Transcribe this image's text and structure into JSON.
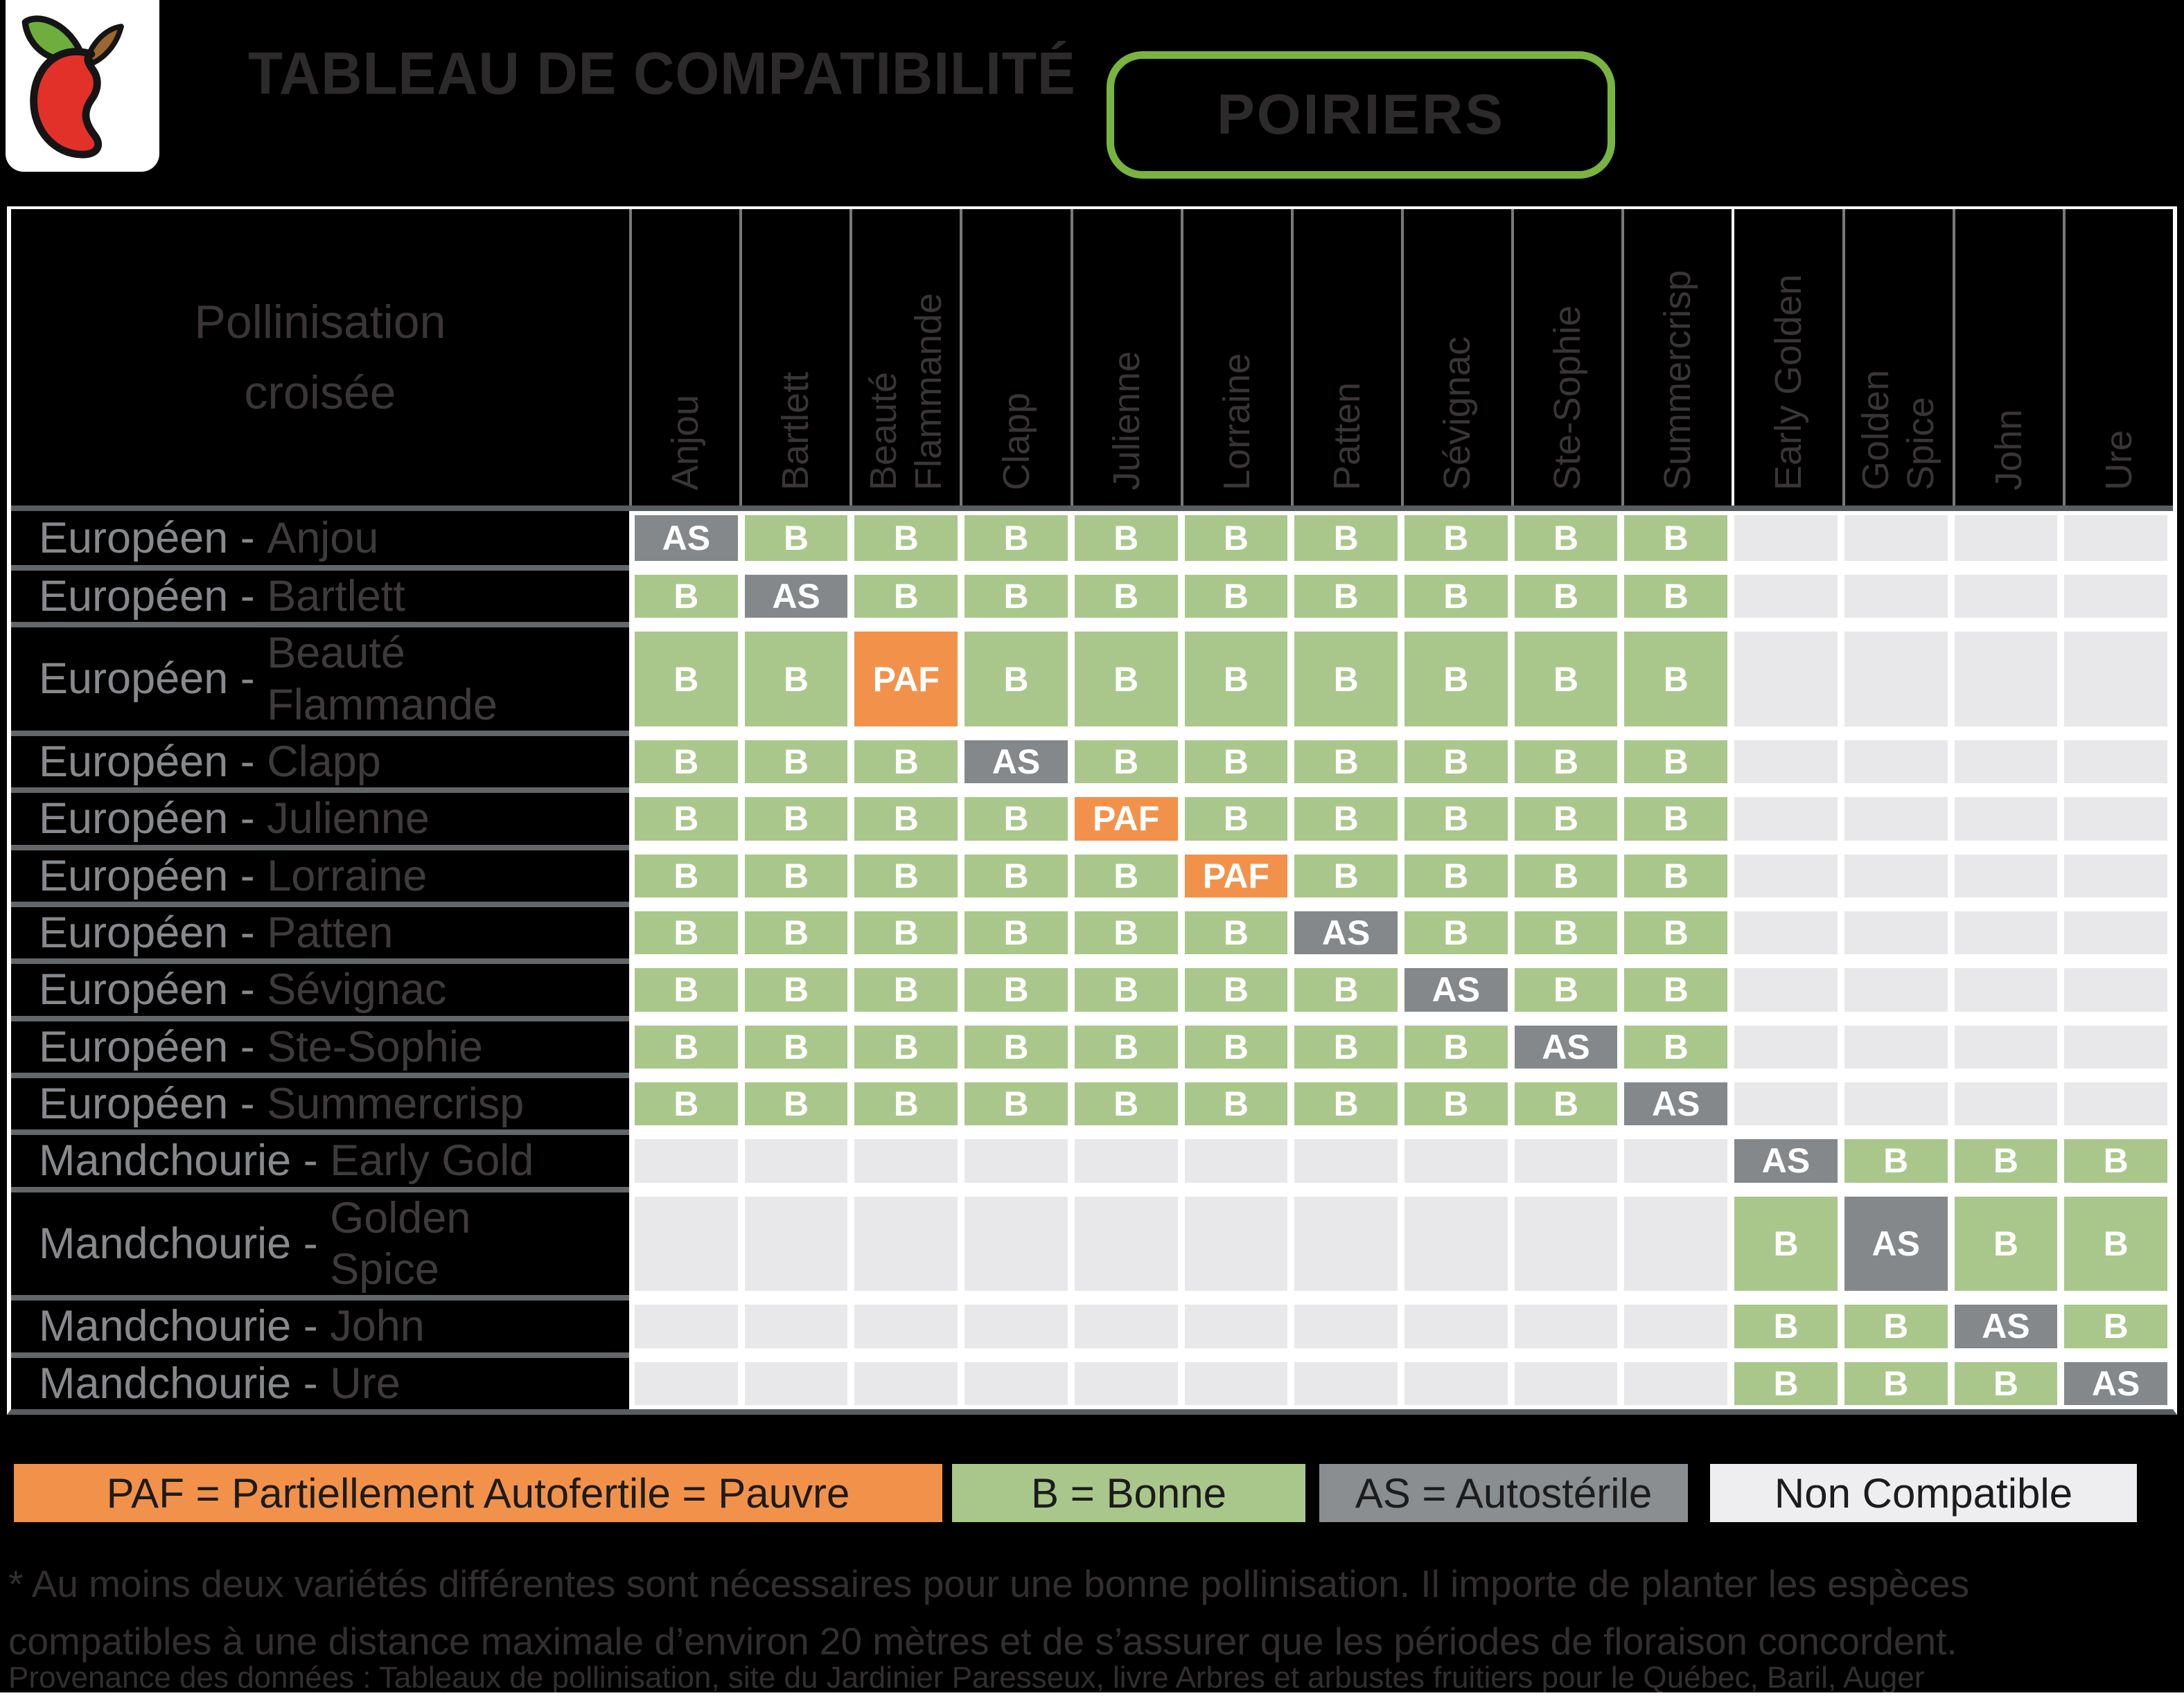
{
  "header": {
    "title": "TABLEAU DE COMPATIBILITÉ",
    "badge": "POIRIERS",
    "badge_border_color": "#79b440"
  },
  "table": {
    "corner": "Pollinisation\ncroisée",
    "columns": [
      "Anjou",
      "Bartlett",
      "Beauté\nFlammande",
      "Clapp",
      "Julienne",
      "Lorraine",
      "Patten",
      "Sévignac",
      "Ste-Sophie",
      "Summercrisp",
      "Early Golden",
      "Golden\nSpice",
      "John",
      "Ure"
    ],
    "rows": [
      {
        "species": "Européen",
        "variety": "Anjou",
        "cells": [
          "AS",
          "B",
          "B",
          "B",
          "B",
          "B",
          "B",
          "B",
          "B",
          "B",
          "",
          "",
          "",
          ""
        ]
      },
      {
        "species": "Européen",
        "variety": "Bartlett",
        "cells": [
          "B",
          "AS",
          "B",
          "B",
          "B",
          "B",
          "B",
          "B",
          "B",
          "B",
          "",
          "",
          "",
          ""
        ]
      },
      {
        "species": "Européen",
        "variety": "Beauté\nFlammande",
        "cells": [
          "B",
          "B",
          "PAF",
          "B",
          "B",
          "B",
          "B",
          "B",
          "B",
          "B",
          "",
          "",
          "",
          ""
        ]
      },
      {
        "species": "Européen",
        "variety": "Clapp",
        "cells": [
          "B",
          "B",
          "B",
          "AS",
          "B",
          "B",
          "B",
          "B",
          "B",
          "B",
          "",
          "",
          "",
          ""
        ]
      },
      {
        "species": "Européen",
        "variety": "Julienne",
        "cells": [
          "B",
          "B",
          "B",
          "B",
          "PAF",
          "B",
          "B",
          "B",
          "B",
          "B",
          "",
          "",
          "",
          ""
        ]
      },
      {
        "species": "Européen",
        "variety": "Lorraine",
        "cells": [
          "B",
          "B",
          "B",
          "B",
          "B",
          "PAF",
          "B",
          "B",
          "B",
          "B",
          "",
          "",
          "",
          ""
        ]
      },
      {
        "species": "Européen",
        "variety": "Patten",
        "cells": [
          "B",
          "B",
          "B",
          "B",
          "B",
          "B",
          "AS",
          "B",
          "B",
          "B",
          "",
          "",
          "",
          ""
        ]
      },
      {
        "species": "Européen",
        "variety": "Sévignac",
        "cells": [
          "B",
          "B",
          "B",
          "B",
          "B",
          "B",
          "B",
          "AS",
          "B",
          "B",
          "",
          "",
          "",
          ""
        ]
      },
      {
        "species": "Européen",
        "variety": "Ste-Sophie",
        "cells": [
          "B",
          "B",
          "B",
          "B",
          "B",
          "B",
          "B",
          "B",
          "AS",
          "B",
          "",
          "",
          "",
          ""
        ]
      },
      {
        "species": "Européen",
        "variety": "Summercrisp",
        "cells": [
          "B",
          "B",
          "B",
          "B",
          "B",
          "B",
          "B",
          "B",
          "B",
          "AS",
          "",
          "",
          "",
          ""
        ]
      },
      {
        "species": "Mandchourie",
        "variety": "Early Gold",
        "cells": [
          "",
          "",
          "",
          "",
          "",
          "",
          "",
          "",
          "",
          "",
          "AS",
          "B",
          "B",
          "B"
        ]
      },
      {
        "species": "Mandchourie",
        "variety": "Golden\nSpice",
        "cells": [
          "",
          "",
          "",
          "",
          "",
          "",
          "",
          "",
          "",
          "",
          "B",
          "AS",
          "B",
          "B"
        ]
      },
      {
        "species": "Mandchourie",
        "variety": "John",
        "cells": [
          "",
          "",
          "",
          "",
          "",
          "",
          "",
          "",
          "",
          "",
          "B",
          "B",
          "AS",
          "B"
        ]
      },
      {
        "species": "Mandchourie",
        "variety": "Ure",
        "cells": [
          "",
          "",
          "",
          "",
          "",
          "",
          "",
          "",
          "",
          "",
          "B",
          "B",
          "B",
          "AS"
        ]
      }
    ]
  },
  "legend": [
    {
      "code": "PAF",
      "label": "PAF = Partiellement Autofertile = Pauvre",
      "color": "#f2924a"
    },
    {
      "code": "B",
      "label": "B = Bonne",
      "color": "#a9c78a"
    },
    {
      "code": "AS",
      "label": "AS = Autostérile",
      "color": "#8a8e90"
    },
    {
      "code": "NC",
      "label": "Non Compatible",
      "color": "#eeeef0"
    }
  ],
  "colors": {
    "cell": {
      "B": "#a9c78a",
      "AS": "#84888b",
      "PAF": "#f2924a",
      "NC": "#e8e8ea"
    }
  },
  "notes": {
    "footnote": "* Au moins deux variétés différentes sont nécessaires pour une bonne pollinisation. Il importe de planter les espèces compatibles à une distance maximale d’environ 20 mètres et de s’assurer que les périodes de floraison concordent.",
    "provenance": "Provenance des données : Tableaux de pollinisation, site du Jardinier Paresseux, livre Arbres et arbustes fruitiers pour le Québec, Baril, Auger"
  },
  "chart_data": {
    "type": "table",
    "title": "Tableau de compatibilité - Poiriers (pollinisation croisée)",
    "columns": [
      "Anjou",
      "Bartlett",
      "Beauté Flammande",
      "Clapp",
      "Julienne",
      "Lorraine",
      "Patten",
      "Sévignac",
      "Ste-Sophie",
      "Summercrisp",
      "Early Golden",
      "Golden Spice",
      "John",
      "Ure"
    ],
    "rows": [
      "Européen - Anjou",
      "Européen - Bartlett",
      "Européen - Beauté Flammande",
      "Européen - Clapp",
      "Européen - Julienne",
      "Européen - Lorraine",
      "Européen - Patten",
      "Européen - Sévignac",
      "Européen - Ste-Sophie",
      "Européen - Summercrisp",
      "Mandchourie - Early Gold",
      "Mandchourie - Golden Spice",
      "Mandchourie - John",
      "Mandchourie - Ure"
    ],
    "matrix": [
      [
        "AS",
        "B",
        "B",
        "B",
        "B",
        "B",
        "B",
        "B",
        "B",
        "B",
        "NC",
        "NC",
        "NC",
        "NC"
      ],
      [
        "B",
        "AS",
        "B",
        "B",
        "B",
        "B",
        "B",
        "B",
        "B",
        "B",
        "NC",
        "NC",
        "NC",
        "NC"
      ],
      [
        "B",
        "B",
        "PAF",
        "B",
        "B",
        "B",
        "B",
        "B",
        "B",
        "B",
        "NC",
        "NC",
        "NC",
        "NC"
      ],
      [
        "B",
        "B",
        "B",
        "AS",
        "B",
        "B",
        "B",
        "B",
        "B",
        "B",
        "NC",
        "NC",
        "NC",
        "NC"
      ],
      [
        "B",
        "B",
        "B",
        "B",
        "PAF",
        "B",
        "B",
        "B",
        "B",
        "B",
        "NC",
        "NC",
        "NC",
        "NC"
      ],
      [
        "B",
        "B",
        "B",
        "B",
        "B",
        "PAF",
        "B",
        "B",
        "B",
        "B",
        "NC",
        "NC",
        "NC",
        "NC"
      ],
      [
        "B",
        "B",
        "B",
        "B",
        "B",
        "B",
        "AS",
        "B",
        "B",
        "B",
        "NC",
        "NC",
        "NC",
        "NC"
      ],
      [
        "B",
        "B",
        "B",
        "B",
        "B",
        "B",
        "B",
        "AS",
        "B",
        "B",
        "NC",
        "NC",
        "NC",
        "NC"
      ],
      [
        "B",
        "B",
        "B",
        "B",
        "B",
        "B",
        "B",
        "B",
        "AS",
        "B",
        "NC",
        "NC",
        "NC",
        "NC"
      ],
      [
        "B",
        "B",
        "B",
        "B",
        "B",
        "B",
        "B",
        "B",
        "B",
        "AS",
        "NC",
        "NC",
        "NC",
        "NC"
      ],
      [
        "NC",
        "NC",
        "NC",
        "NC",
        "NC",
        "NC",
        "NC",
        "NC",
        "NC",
        "NC",
        "AS",
        "B",
        "B",
        "B"
      ],
      [
        "NC",
        "NC",
        "NC",
        "NC",
        "NC",
        "NC",
        "NC",
        "NC",
        "NC",
        "NC",
        "B",
        "AS",
        "B",
        "B"
      ],
      [
        "NC",
        "NC",
        "NC",
        "NC",
        "NC",
        "NC",
        "NC",
        "NC",
        "NC",
        "NC",
        "B",
        "B",
        "AS",
        "B"
      ],
      [
        "NC",
        "NC",
        "NC",
        "NC",
        "NC",
        "NC",
        "NC",
        "NC",
        "NC",
        "NC",
        "B",
        "B",
        "B",
        "AS"
      ]
    ],
    "legend": {
      "PAF": "Partiellement Autofertile = Pauvre",
      "B": "Bonne",
      "AS": "Autostérile",
      "NC": "Non Compatible"
    }
  }
}
